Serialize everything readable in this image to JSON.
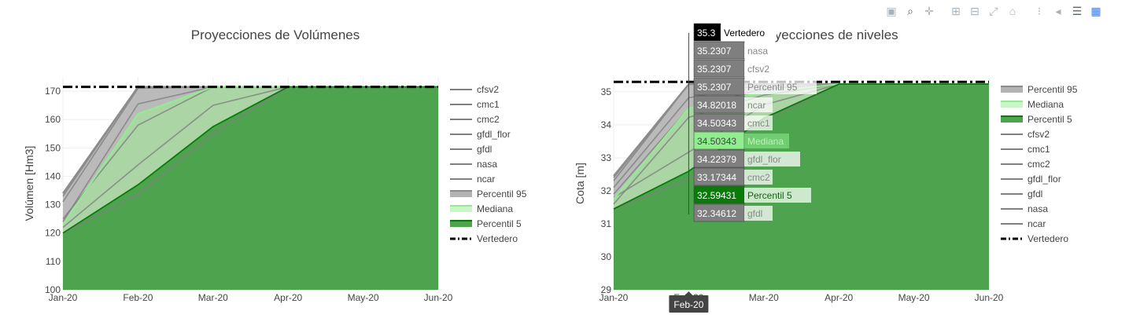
{
  "modebar": {
    "icons": [
      "camera-icon",
      "zoom-icon",
      "pan-icon",
      "zoom-in-icon",
      "zoom-out-icon",
      "autoscale-icon",
      "reset-axes-icon",
      "spike-lines-icon",
      "hover-closest-icon",
      "hover-compare-icon",
      "plotly-logo-icon"
    ]
  },
  "colors": {
    "green_area": "#4ea34e",
    "light_green": "#90ee90",
    "dark_green": "#0a7a0a",
    "gray_band": "#b3b3b3",
    "model_line": "#808080",
    "vertedero": "#000000",
    "grid": "#eeeeee"
  },
  "chart_data": [
    {
      "type": "area",
      "title": "Proyecciones de Volúmenes",
      "xlabel": "",
      "ylabel": "Volúmen [Hm3]",
      "x": [
        "Jan-20",
        "Feb-20",
        "Mar-20",
        "Apr-20",
        "May-20",
        "Jun-20"
      ],
      "ylim": [
        100,
        175
      ],
      "yticks": [
        100,
        110,
        120,
        130,
        140,
        150,
        160,
        170
      ],
      "grid": true,
      "legend_position": "right",
      "series": [
        {
          "name": "cfsv2",
          "kind": "model",
          "values": [
            133,
            171.5,
            171.5,
            171.5,
            171.5,
            171.5
          ]
        },
        {
          "name": "cmc1",
          "kind": "model",
          "values": [
            124,
            165.5,
            171.5,
            171.5,
            171.5,
            171.5
          ]
        },
        {
          "name": "cmc2",
          "kind": "model",
          "values": [
            125,
            158,
            171.5,
            171.5,
            171.5,
            171.5
          ]
        },
        {
          "name": "gfdl_flor",
          "kind": "model",
          "values": [
            122,
            144,
            165,
            171.5,
            171.5,
            171.5
          ]
        },
        {
          "name": "gfdl",
          "kind": "model",
          "values": [
            120,
            133.5,
            155,
            171.5,
            171.5,
            171.5
          ]
        },
        {
          "name": "nasa",
          "kind": "model",
          "values": [
            134,
            171.5,
            171.5,
            171.5,
            171.5,
            171.5
          ]
        },
        {
          "name": "ncar",
          "kind": "model",
          "values": [
            131,
            171,
            171.5,
            171.5,
            171.5,
            171.5
          ]
        },
        {
          "name": "Percentil 95",
          "kind": "p95",
          "values": [
            134,
            171.5,
            171.5,
            171.5,
            171.5,
            171.5
          ]
        },
        {
          "name": "Mediana",
          "kind": "median",
          "values": [
            123,
            162,
            171.5,
            171.5,
            171.5,
            171.5
          ]
        },
        {
          "name": "Percentil 5",
          "kind": "p5",
          "values": [
            120,
            137,
            157.5,
            171.5,
            171.5,
            171.5
          ]
        },
        {
          "name": "Vertedero",
          "kind": "vertedero",
          "values": [
            171.5,
            171.5,
            171.5,
            171.5,
            171.5,
            171.5
          ]
        }
      ]
    },
    {
      "type": "area",
      "title": "Proyecciones de niveles",
      "xlabel": "",
      "ylabel": "Cota [m]",
      "x": [
        "Jan-20",
        "Feb-20",
        "Mar-20",
        "Apr-20",
        "May-20",
        "Jun-20"
      ],
      "ylim": [
        29,
        35.45
      ],
      "yticks": [
        29,
        30,
        31,
        32,
        33,
        34,
        35
      ],
      "grid": true,
      "legend_position": "right",
      "series": [
        {
          "name": "Percentil 95",
          "kind": "p95",
          "values": [
            32.45,
            35.2307,
            35.2307,
            35.2307,
            35.2307,
            35.2307
          ]
        },
        {
          "name": "Mediana",
          "kind": "median",
          "values": [
            31.75,
            34.50343,
            35.0,
            35.2307,
            35.2307,
            35.2307
          ]
        },
        {
          "name": "Percentil 5",
          "kind": "p5",
          "values": [
            31.45,
            32.59431,
            34.2,
            35.2307,
            35.2307,
            35.2307
          ]
        },
        {
          "name": "cfsv2",
          "kind": "model",
          "values": [
            32.4,
            35.2307,
            35.2307,
            35.2307,
            35.2307,
            35.2307
          ]
        },
        {
          "name": "cmc1",
          "kind": "model",
          "values": [
            31.9,
            34.50343,
            35.1,
            35.2307,
            35.2307,
            35.2307
          ]
        },
        {
          "name": "cmc2",
          "kind": "model",
          "values": [
            31.8,
            33.17344,
            34.6,
            35.2307,
            35.2307,
            35.2307
          ]
        },
        {
          "name": "gfdl_flor",
          "kind": "model",
          "values": [
            31.6,
            34.22379,
            34.9,
            35.2307,
            35.2307,
            35.2307
          ]
        },
        {
          "name": "gfdl",
          "kind": "model",
          "values": [
            31.45,
            32.34612,
            34.1,
            35.2307,
            35.2307,
            35.2307
          ]
        },
        {
          "name": "nasa",
          "kind": "model",
          "values": [
            32.3,
            35.2307,
            35.2307,
            35.2307,
            35.2307,
            35.2307
          ]
        },
        {
          "name": "ncar",
          "kind": "model",
          "values": [
            32.1,
            34.82018,
            35.2307,
            35.2307,
            35.2307,
            35.2307
          ]
        },
        {
          "name": "Vertedero",
          "kind": "vertedero",
          "values": [
            35.3,
            35.3,
            35.3,
            35.3,
            35.3,
            35.3
          ]
        }
      ]
    }
  ],
  "hover": {
    "x_label": "Feb-20",
    "items": [
      {
        "value": "35.3",
        "name": "Vertedero",
        "kind": "vertedero"
      },
      {
        "value": "35.2307",
        "name": "nasa",
        "kind": "model"
      },
      {
        "value": "35.2307",
        "name": "cfsv2",
        "kind": "model"
      },
      {
        "value": "35.2307",
        "name": "Percentil 95",
        "kind": "model"
      },
      {
        "value": "34.82018",
        "name": "ncar",
        "kind": "model"
      },
      {
        "value": "34.50343",
        "name": "cmc1",
        "kind": "model"
      },
      {
        "value": "34.50343",
        "name": "Mediana",
        "kind": "median"
      },
      {
        "value": "34.22379",
        "name": "gfdl_flor",
        "kind": "model"
      },
      {
        "value": "33.17344",
        "name": "cmc2",
        "kind": "model"
      },
      {
        "value": "32.59431",
        "name": "Percentil 5",
        "kind": "p5"
      },
      {
        "value": "32.34612",
        "name": "gfdl",
        "kind": "model"
      }
    ]
  }
}
